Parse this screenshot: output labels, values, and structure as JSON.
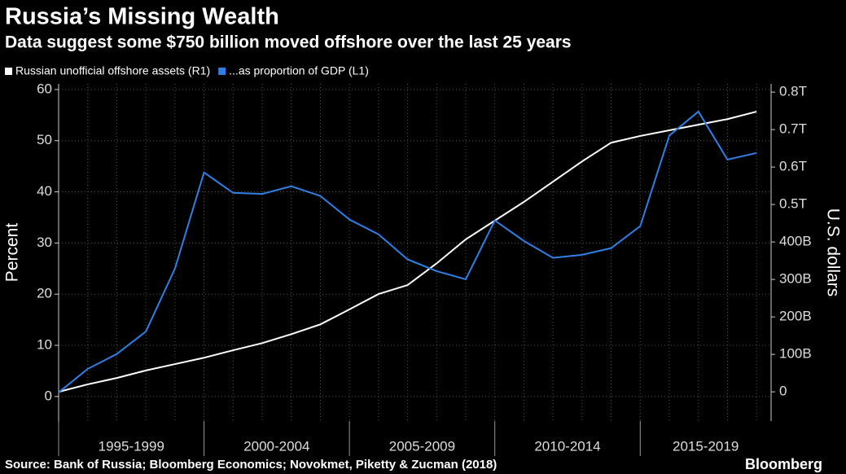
{
  "chart_data": {
    "type": "line",
    "title": "Russia’s Missing Wealth",
    "subtitle": "Data suggest some $750 billion moved offshore over the last 25 years",
    "source": "Source: Bank of Russia; Bloomberg Economics; Novokmet, Piketty & Zucman (2018)",
    "brand": "Bloomberg",
    "ylabel": "Percent",
    "y2label": "U.S. dollars",
    "x": [
      1995,
      1996,
      1997,
      1998,
      1999,
      2000,
      2001,
      2002,
      2003,
      2004,
      2005,
      2006,
      2007,
      2008,
      2009,
      2010,
      2011,
      2012,
      2013,
      2014,
      2015,
      2016,
      2017,
      2018,
      2019
    ],
    "xlim": [
      1995,
      2019.5
    ],
    "x_groups": [
      {
        "label": "1995-1999",
        "start": 1995,
        "end": 2000
      },
      {
        "label": "2000-2004",
        "start": 2000,
        "end": 2005
      },
      {
        "label": "2005-2009",
        "start": 2005,
        "end": 2010
      },
      {
        "label": "2010-2014",
        "start": 2010,
        "end": 2015
      },
      {
        "label": "2015-2019",
        "start": 2015,
        "end": 2020
      }
    ],
    "series": [
      {
        "name": "Russian unofficial offshore assets (R1)",
        "color": "#ffffff",
        "axis": "y2",
        "values": [
          0,
          20,
          37,
          57,
          74,
          91,
          111,
          130,
          154,
          180,
          220,
          261,
          285,
          343,
          407,
          457,
          507,
          561,
          615,
          665,
          683,
          698,
          713,
          728,
          748
        ]
      },
      {
        "name": "...as proportion of GDP (L1)",
        "color": "#2f7fe6",
        "axis": "y",
        "values": [
          0.8,
          5.4,
          8.3,
          12.7,
          25,
          43.8,
          39.8,
          39.6,
          41.1,
          39.2,
          34.6,
          31.7,
          26.8,
          24.5,
          22.9,
          34.4,
          30.4,
          27.1,
          27.7,
          29.0,
          33.3,
          51.0,
          55.7,
          46.3,
          47.6
        ]
      }
    ],
    "ylim": [
      -4.8,
      61.1
    ],
    "yticks": [
      0,
      10,
      20,
      30,
      40,
      50,
      60
    ],
    "y2lim": [
      -78,
      822
    ],
    "y2ticks": [
      0,
      {
        "value": 100,
        "label": "100B"
      },
      {
        "value": 200,
        "label": "200B"
      },
      {
        "value": 300,
        "label": "300B"
      },
      {
        "value": 400,
        "label": "400B"
      },
      {
        "value": 500,
        "label": "0.5T"
      },
      {
        "value": 600,
        "label": "0.6T"
      },
      {
        "value": 700,
        "label": "0.7T"
      },
      {
        "value": 800,
        "label": "0.8T"
      }
    ],
    "grid": true
  }
}
